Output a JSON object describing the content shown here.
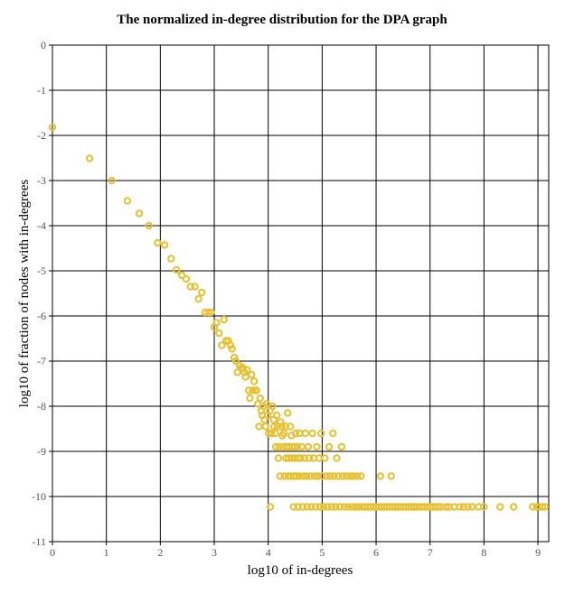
{
  "chart_data": {
    "type": "scatter",
    "title": "The normalized in-degree distribution for the DPA graph",
    "xlabel": "log10 of in-degrees",
    "ylabel": "log10 of fraction of nodes with in-degrees",
    "xlim": [
      0,
      9.2
    ],
    "ylim": [
      -11,
      0
    ],
    "x_ticks": [
      "0",
      "1",
      "2",
      "3",
      "4",
      "5",
      "6",
      "7",
      "8",
      "9"
    ],
    "y_ticks": [
      "0",
      "-1",
      "-2",
      "-3",
      "-4",
      "-5",
      "-6",
      "-7",
      "-8",
      "-9",
      "-10",
      "-11"
    ],
    "grid": true,
    "marker_color": "#e8c132",
    "marker": "hollow-circle",
    "series": [
      {
        "points": [
          [
            0.0,
            -1.82
          ],
          [
            0.69,
            -2.51
          ],
          [
            1.1,
            -3.0
          ],
          [
            1.39,
            -3.45
          ],
          [
            1.61,
            -3.73
          ],
          [
            1.79,
            -4.0
          ],
          [
            1.95,
            -4.38
          ],
          [
            2.08,
            -4.43
          ],
          [
            2.2,
            -4.73
          ],
          [
            2.3,
            -4.98
          ],
          [
            2.4,
            -5.1
          ],
          [
            2.48,
            -5.18
          ],
          [
            2.56,
            -5.35
          ],
          [
            2.64,
            -5.35
          ],
          [
            2.71,
            -5.62
          ],
          [
            2.77,
            -5.48
          ],
          [
            2.83,
            -5.92
          ],
          [
            2.89,
            -5.92
          ],
          [
            2.94,
            -5.92
          ],
          [
            3.0,
            -6.25
          ],
          [
            3.04,
            -6.15
          ],
          [
            3.09,
            -6.38
          ],
          [
            3.14,
            -6.65
          ],
          [
            3.18,
            -6.08
          ],
          [
            3.22,
            -6.55
          ],
          [
            3.26,
            -6.55
          ],
          [
            3.3,
            -6.65
          ],
          [
            3.33,
            -6.73
          ],
          [
            3.37,
            -6.92
          ],
          [
            3.4,
            -7.0
          ],
          [
            3.43,
            -7.25
          ],
          [
            3.47,
            -7.1
          ],
          [
            3.5,
            -7.15
          ],
          [
            3.53,
            -7.15
          ],
          [
            3.56,
            -7.25
          ],
          [
            3.58,
            -7.35
          ],
          [
            3.61,
            -7.2
          ],
          [
            3.64,
            -7.65
          ],
          [
            3.66,
            -7.82
          ],
          [
            3.69,
            -7.3
          ],
          [
            3.71,
            -7.65
          ],
          [
            3.74,
            -7.45
          ],
          [
            3.76,
            -7.65
          ],
          [
            3.78,
            -7.65
          ],
          [
            3.81,
            -7.95
          ],
          [
            3.83,
            -8.45
          ],
          [
            3.85,
            -7.82
          ],
          [
            3.87,
            -8.1
          ],
          [
            3.89,
            -8.2
          ],
          [
            3.91,
            -8.0
          ],
          [
            3.93,
            -8.3
          ],
          [
            3.95,
            -8.45
          ],
          [
            3.97,
            -7.95
          ],
          [
            3.99,
            -8.2
          ],
          [
            4.01,
            -8.6
          ],
          [
            4.03,
            -8.1
          ],
          [
            4.04,
            -10.23
          ],
          [
            4.06,
            -8.6
          ],
          [
            4.08,
            -8.0
          ],
          [
            4.1,
            -8.3
          ],
          [
            4.11,
            -8.45
          ],
          [
            4.13,
            -8.6
          ],
          [
            4.14,
            -8.9
          ],
          [
            4.16,
            -8.2
          ],
          [
            4.17,
            -8.45
          ],
          [
            4.19,
            -9.15
          ],
          [
            4.2,
            -8.9
          ],
          [
            4.22,
            -9.55
          ],
          [
            4.23,
            -8.35
          ],
          [
            4.25,
            -8.45
          ],
          [
            4.26,
            -8.65
          ],
          [
            4.28,
            -8.9
          ],
          [
            4.29,
            -8.6
          ],
          [
            4.3,
            -9.55
          ],
          [
            4.32,
            -8.45
          ],
          [
            4.33,
            -9.15
          ],
          [
            4.34,
            -8.9
          ],
          [
            4.36,
            -8.15
          ],
          [
            4.37,
            -9.55
          ],
          [
            4.38,
            -9.15
          ],
          [
            4.39,
            -8.9
          ],
          [
            4.41,
            -8.45
          ],
          [
            4.42,
            -9.55
          ],
          [
            4.43,
            -8.65
          ],
          [
            4.44,
            -9.15
          ],
          [
            4.45,
            -8.9
          ],
          [
            4.47,
            -10.23
          ],
          [
            4.48,
            -9.55
          ],
          [
            4.49,
            -8.9
          ],
          [
            4.5,
            -9.15
          ],
          [
            4.51,
            -8.6
          ],
          [
            4.52,
            -9.55
          ],
          [
            4.54,
            -8.9
          ],
          [
            4.55,
            -10.23
          ],
          [
            4.56,
            -9.15
          ],
          [
            4.57,
            -9.55
          ],
          [
            4.58,
            -8.6
          ],
          [
            4.6,
            -9.15
          ],
          [
            4.62,
            -8.9
          ],
          [
            4.64,
            -10.23
          ],
          [
            4.65,
            -9.55
          ],
          [
            4.67,
            -9.15
          ],
          [
            4.69,
            -8.6
          ],
          [
            4.71,
            -9.55
          ],
          [
            4.72,
            -10.23
          ],
          [
            4.74,
            -8.9
          ],
          [
            4.76,
            -9.15
          ],
          [
            4.78,
            -9.55
          ],
          [
            4.8,
            -10.23
          ],
          [
            4.82,
            -8.6
          ],
          [
            4.84,
            -9.15
          ],
          [
            4.86,
            -9.55
          ],
          [
            4.88,
            -10.23
          ],
          [
            4.9,
            -8.9
          ],
          [
            4.92,
            -9.55
          ],
          [
            4.94,
            -9.15
          ],
          [
            4.96,
            -10.23
          ],
          [
            4.98,
            -8.6
          ],
          [
            5.0,
            -9.55
          ],
          [
            5.03,
            -10.23
          ],
          [
            5.05,
            -9.15
          ],
          [
            5.08,
            -9.55
          ],
          [
            5.1,
            -10.23
          ],
          [
            5.13,
            -8.9
          ],
          [
            5.15,
            -9.55
          ],
          [
            5.18,
            -10.23
          ],
          [
            5.2,
            -8.6
          ],
          [
            5.22,
            -9.55
          ],
          [
            5.25,
            -10.23
          ],
          [
            5.27,
            -9.15
          ],
          [
            5.3,
            -9.55
          ],
          [
            5.33,
            -10.23
          ],
          [
            5.36,
            -8.9
          ],
          [
            5.38,
            -9.55
          ],
          [
            5.41,
            -10.23
          ],
          [
            5.45,
            -9.55
          ],
          [
            5.48,
            -10.23
          ],
          [
            5.52,
            -9.55
          ],
          [
            5.55,
            -10.23
          ],
          [
            5.58,
            -9.55
          ],
          [
            5.62,
            -10.23
          ],
          [
            5.65,
            -9.55
          ],
          [
            5.68,
            -10.23
          ],
          [
            5.72,
            -9.55
          ],
          [
            5.75,
            -10.23
          ],
          [
            5.8,
            -10.23
          ],
          [
            5.85,
            -10.23
          ],
          [
            5.9,
            -10.23
          ],
          [
            5.95,
            -10.23
          ],
          [
            6.0,
            -10.23
          ],
          [
            6.05,
            -10.23
          ],
          [
            6.08,
            -9.55
          ],
          [
            6.1,
            -10.23
          ],
          [
            6.15,
            -10.23
          ],
          [
            6.2,
            -10.23
          ],
          [
            6.25,
            -10.23
          ],
          [
            6.28,
            -9.55
          ],
          [
            6.3,
            -10.23
          ],
          [
            6.35,
            -10.23
          ],
          [
            6.4,
            -10.23
          ],
          [
            6.45,
            -10.23
          ],
          [
            6.5,
            -10.23
          ],
          [
            6.55,
            -10.23
          ],
          [
            6.6,
            -10.23
          ],
          [
            6.65,
            -10.23
          ],
          [
            6.7,
            -10.23
          ],
          [
            6.75,
            -10.23
          ],
          [
            6.8,
            -10.23
          ],
          [
            6.85,
            -10.23
          ],
          [
            6.9,
            -10.23
          ],
          [
            6.95,
            -10.23
          ],
          [
            7.0,
            -10.23
          ],
          [
            7.05,
            -10.23
          ],
          [
            7.1,
            -10.23
          ],
          [
            7.15,
            -10.23
          ],
          [
            7.2,
            -10.23
          ],
          [
            7.3,
            -10.23
          ],
          [
            7.35,
            -10.23
          ],
          [
            7.45,
            -10.23
          ],
          [
            7.55,
            -10.23
          ],
          [
            7.62,
            -10.23
          ],
          [
            7.7,
            -10.23
          ],
          [
            7.78,
            -10.23
          ],
          [
            7.9,
            -10.23
          ],
          [
            8.0,
            -10.23
          ],
          [
            8.3,
            -10.23
          ],
          [
            8.55,
            -10.23
          ],
          [
            8.9,
            -10.23
          ],
          [
            8.98,
            -10.23
          ],
          [
            9.03,
            -10.23
          ],
          [
            9.08,
            -10.23
          ],
          [
            9.13,
            -10.23
          ]
        ]
      }
    ]
  }
}
